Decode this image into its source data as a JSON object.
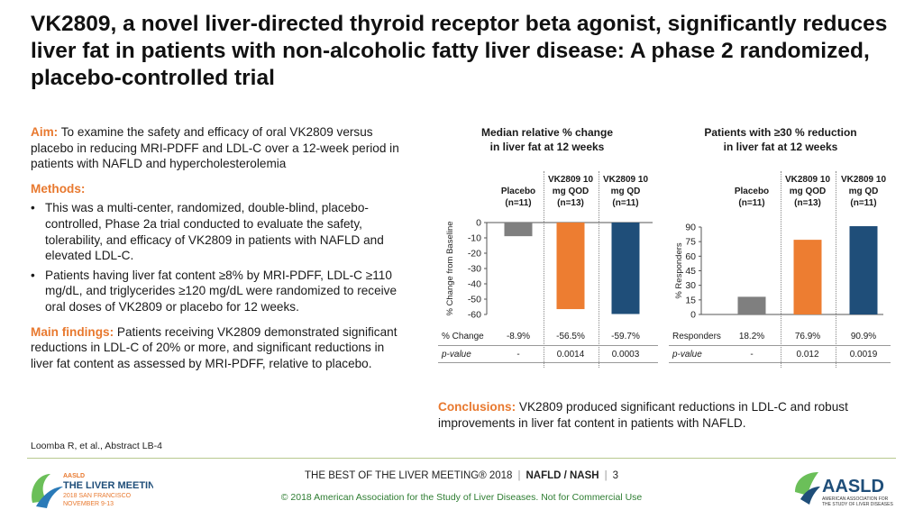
{
  "title": "VK2809, a novel liver-directed thyroid receptor beta agonist, significantly reduces liver fat in patients with non-alcoholic fatty liver disease: A phase 2 randomized, placebo-controlled trial",
  "aim": {
    "label": "Aim:",
    "text": " To examine the safety and efficacy of oral VK2809 versus placebo in reducing MRI-PDFF and LDL-C over a 12-week period in patients with NAFLD and hypercholesterolemia"
  },
  "methods": {
    "label": "Methods:",
    "bullets": [
      "This was a multi-center, randomized, double-blind, placebo-controlled, Phase 2a trial conducted to evaluate the safety, tolerability, and efficacy of VK2809 in patients with NAFLD and elevated LDL-C.",
      "Patients having liver fat content ≥8% by MRI-PDFF, LDL-C ≥110 mg/dL, and triglycerides ≥120 mg/dL were randomized to receive oral doses of VK2809 or placebo for 12 weeks."
    ]
  },
  "findings": {
    "label": "Main findings:",
    "text": " Patients receiving VK2809 demonstrated significant reductions in LDL-C of 20% or more, and significant reductions in liver fat content as assessed by MRI-PDFF, relative to placebo."
  },
  "reference": "Loomba R, et al., Abstract LB-4",
  "conclusions": {
    "label": "Conclusions:",
    "text": " VK2809 produced significant reductions in LDL-C and robust improvements in liver fat content in patients with NAFLD."
  },
  "footer": {
    "meeting": "THE BEST OF THE LIVER MEETING® 2018",
    "topic": "NAFLD / NASH",
    "page": "3",
    "copyright": "© 2018 American Association for the Study of Liver Diseases. Not for Commercial Use"
  },
  "logos": {
    "left": [
      "AASLD",
      "THE LIVER MEETING®",
      "2018 SAN FRANCISCO",
      "NOVEMBER 9-13"
    ],
    "right": [
      "AASLD",
      "AMERICAN ASSOCIATION FOR",
      "THE STUDY OF LIVER DISEASES"
    ]
  },
  "chart_data": [
    {
      "type": "bar",
      "title": "Median relative % change in liver fat at 12 weeks",
      "title_lines": [
        "Median relative % change",
        "in liver fat at 12 weeks"
      ],
      "ylabel": "% Change from Baseline",
      "ylim": [
        -60,
        0
      ],
      "yticks": [
        0,
        -10,
        -20,
        -30,
        -40,
        -50,
        -60
      ],
      "categories": [
        {
          "lines": [
            "Placebo",
            "(n=11)"
          ]
        },
        {
          "lines": [
            "VK2809 10",
            "mg QOD",
            "(n=13)"
          ]
        },
        {
          "lines": [
            "VK2809 10",
            "mg QD",
            "(n=11)"
          ]
        }
      ],
      "values": [
        -8.9,
        -56.5,
        -59.7
      ],
      "colors": [
        "#7f7f7f",
        "#ed7d31",
        "#1f4e79"
      ],
      "table": [
        {
          "label": "% Change",
          "values": [
            "-8.9%",
            "-56.5%",
            "-59.7%"
          ]
        },
        {
          "label": "p-value",
          "values": [
            "-",
            "0.0014",
            "0.0003"
          ]
        }
      ]
    },
    {
      "type": "bar",
      "title": "Patients with ≥30 % reduction in liver fat at 12 weeks",
      "title_lines": [
        "Patients with ≥30 % reduction",
        "in liver fat at 12 weeks"
      ],
      "ylabel": "% Responders",
      "ylim": [
        0,
        90
      ],
      "yticks": [
        90,
        75,
        60,
        45,
        30,
        15,
        0
      ],
      "categories": [
        {
          "lines": [
            "Placebo",
            "(n=11)"
          ]
        },
        {
          "lines": [
            "VK2809 10",
            "mg QOD",
            "(n=13)"
          ]
        },
        {
          "lines": [
            "VK2809 10",
            "mg QD",
            "(n=11)"
          ]
        }
      ],
      "values": [
        18.2,
        76.9,
        90.9
      ],
      "colors": [
        "#7f7f7f",
        "#ed7d31",
        "#1f4e79"
      ],
      "table": [
        {
          "label": "Responders",
          "values": [
            "18.2%",
            "76.9%",
            "90.9%"
          ]
        },
        {
          "label": "p-value",
          "values": [
            "-",
            "0.012",
            "0.0019"
          ]
        }
      ]
    }
  ]
}
